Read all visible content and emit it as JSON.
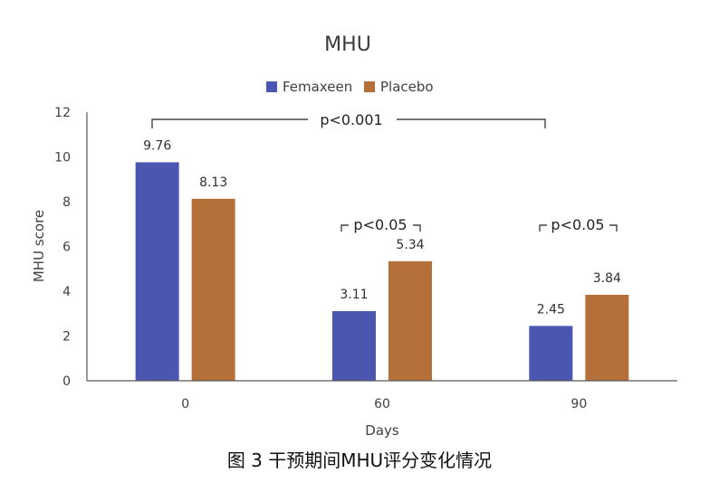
{
  "chart_data": {
    "type": "bar",
    "title": "MHU",
    "xlabel": "Days",
    "ylabel": "MHU score",
    "categories": [
      "0",
      "60",
      "90"
    ],
    "series": [
      {
        "name": "Femaxeen",
        "values": [
          9.76,
          3.11,
          2.45
        ],
        "labels": [
          "9.76",
          "3.11",
          "2.45"
        ],
        "color": "#4a56b0"
      },
      {
        "name": "Placebo",
        "values": [
          8.13,
          5.34,
          3.84
        ],
        "labels": [
          "8.13",
          "5.34",
          "3.84"
        ],
        "color": "#b5703a"
      }
    ],
    "ylim": [
      0,
      12
    ],
    "yticks": [
      "0",
      "2",
      "4",
      "6",
      "8",
      "10",
      "12"
    ],
    "grid": false,
    "legend": "top-center",
    "annotations": {
      "overall": "p<0.001",
      "day60": "p<0.05",
      "day90": "p<0.05"
    }
  },
  "caption": "图 3 干预期间MHU评分变化情况"
}
